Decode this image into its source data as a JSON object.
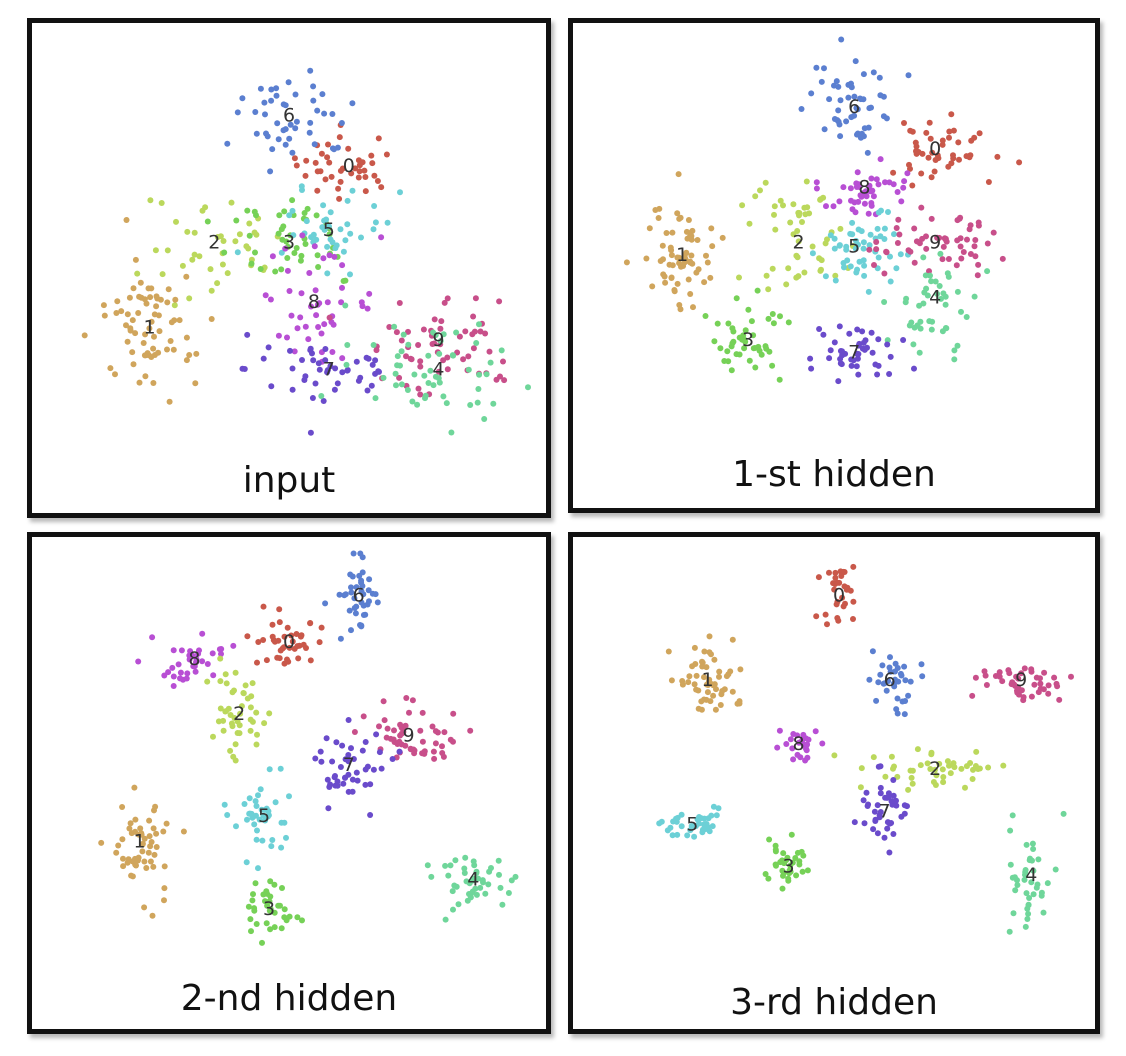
{
  "colors": {
    "0": "#c9584a",
    "1": "#d0a55c",
    "2": "#bbd85c",
    "3": "#76d157",
    "4": "#6fd69a",
    "5": "#6cd0d6",
    "6": "#5b7fd0",
    "7": "#6a4bcb",
    "8": "#b84fd4",
    "9": "#c84f8a"
  },
  "chart_data": [
    {
      "type": "scatter",
      "title": "input",
      "clusters": [
        {
          "label": "0",
          "center": [
            0.62,
            0.32
          ],
          "spread": [
            0.07,
            0.05
          ],
          "n": 40
        },
        {
          "label": "6",
          "center": [
            0.5,
            0.2
          ],
          "spread": [
            0.08,
            0.07
          ],
          "n": 45
        },
        {
          "label": "2",
          "center": [
            0.35,
            0.5
          ],
          "spread": [
            0.09,
            0.09
          ],
          "n": 40
        },
        {
          "label": "3",
          "center": [
            0.5,
            0.5
          ],
          "spread": [
            0.1,
            0.08
          ],
          "n": 45
        },
        {
          "label": "5",
          "center": [
            0.58,
            0.47
          ],
          "spread": [
            0.07,
            0.06
          ],
          "n": 40
        },
        {
          "label": "1",
          "center": [
            0.22,
            0.7
          ],
          "spread": [
            0.06,
            0.1
          ],
          "n": 70
        },
        {
          "label": "8",
          "center": [
            0.55,
            0.64
          ],
          "spread": [
            0.08,
            0.08
          ],
          "n": 45
        },
        {
          "label": "7",
          "center": [
            0.58,
            0.8
          ],
          "spread": [
            0.11,
            0.06
          ],
          "n": 45
        },
        {
          "label": "9",
          "center": [
            0.8,
            0.73
          ],
          "spread": [
            0.11,
            0.08
          ],
          "n": 60
        },
        {
          "label": "4",
          "center": [
            0.8,
            0.8
          ],
          "spread": [
            0.11,
            0.08
          ],
          "n": 55
        }
      ]
    },
    {
      "type": "scatter",
      "title": "1-st hidden",
      "clusters": [
        {
          "label": "6",
          "center": [
            0.54,
            0.18
          ],
          "spread": [
            0.06,
            0.06
          ],
          "n": 50
        },
        {
          "label": "0",
          "center": [
            0.7,
            0.28
          ],
          "spread": [
            0.07,
            0.05
          ],
          "n": 45
        },
        {
          "label": "8",
          "center": [
            0.56,
            0.37
          ],
          "spread": [
            0.06,
            0.05
          ],
          "n": 45
        },
        {
          "label": "1",
          "center": [
            0.2,
            0.53
          ],
          "spread": [
            0.05,
            0.09
          ],
          "n": 65
        },
        {
          "label": "2",
          "center": [
            0.43,
            0.5
          ],
          "spread": [
            0.06,
            0.1
          ],
          "n": 50
        },
        {
          "label": "5",
          "center": [
            0.54,
            0.51
          ],
          "spread": [
            0.06,
            0.06
          ],
          "n": 50
        },
        {
          "label": "9",
          "center": [
            0.7,
            0.5
          ],
          "spread": [
            0.08,
            0.05
          ],
          "n": 55
        },
        {
          "label": "4",
          "center": [
            0.7,
            0.63
          ],
          "spread": [
            0.06,
            0.09
          ],
          "n": 45
        },
        {
          "label": "3",
          "center": [
            0.33,
            0.73
          ],
          "spread": [
            0.05,
            0.06
          ],
          "n": 45
        },
        {
          "label": "7",
          "center": [
            0.54,
            0.76
          ],
          "spread": [
            0.06,
            0.04
          ],
          "n": 45
        }
      ]
    },
    {
      "type": "scatter",
      "title": "2-nd hidden",
      "clusters": [
        {
          "label": "6",
          "center": [
            0.64,
            0.12
          ],
          "spread": [
            0.03,
            0.06
          ],
          "n": 40
        },
        {
          "label": "0",
          "center": [
            0.5,
            0.23
          ],
          "spread": [
            0.05,
            0.04
          ],
          "n": 40
        },
        {
          "label": "8",
          "center": [
            0.31,
            0.27
          ],
          "spread": [
            0.04,
            0.04
          ],
          "n": 35
        },
        {
          "label": "2",
          "center": [
            0.4,
            0.4
          ],
          "spread": [
            0.04,
            0.06
          ],
          "n": 45
        },
        {
          "label": "9",
          "center": [
            0.74,
            0.45
          ],
          "spread": [
            0.06,
            0.05
          ],
          "n": 55
        },
        {
          "label": "7",
          "center": [
            0.62,
            0.52
          ],
          "spread": [
            0.05,
            0.06
          ],
          "n": 45
        },
        {
          "label": "5",
          "center": [
            0.45,
            0.64
          ],
          "spread": [
            0.04,
            0.06
          ],
          "n": 40
        },
        {
          "label": "1",
          "center": [
            0.2,
            0.7
          ],
          "spread": [
            0.04,
            0.08
          ],
          "n": 55
        },
        {
          "label": "4",
          "center": [
            0.87,
            0.79
          ],
          "spread": [
            0.05,
            0.05
          ],
          "n": 45
        },
        {
          "label": "3",
          "center": [
            0.46,
            0.86
          ],
          "spread": [
            0.04,
            0.04
          ],
          "n": 35
        }
      ]
    },
    {
      "type": "scatter",
      "title": "3-rd hidden",
      "clusters": [
        {
          "label": "0",
          "center": [
            0.51,
            0.12
          ],
          "spread": [
            0.02,
            0.05
          ],
          "n": 30
        },
        {
          "label": "1",
          "center": [
            0.25,
            0.32
          ],
          "spread": [
            0.04,
            0.06
          ],
          "n": 55
        },
        {
          "label": "6",
          "center": [
            0.61,
            0.32
          ],
          "spread": [
            0.03,
            0.05
          ],
          "n": 35
        },
        {
          "label": "9",
          "center": [
            0.87,
            0.32
          ],
          "spread": [
            0.05,
            0.03
          ],
          "n": 45
        },
        {
          "label": "8",
          "center": [
            0.43,
            0.47
          ],
          "spread": [
            0.03,
            0.03
          ],
          "n": 25
        },
        {
          "label": "2",
          "center": [
            0.7,
            0.53
          ],
          "spread": [
            0.08,
            0.03
          ],
          "n": 45
        },
        {
          "label": "7",
          "center": [
            0.6,
            0.63
          ],
          "spread": [
            0.03,
            0.06
          ],
          "n": 40
        },
        {
          "label": "5",
          "center": [
            0.22,
            0.66
          ],
          "spread": [
            0.05,
            0.03
          ],
          "n": 35
        },
        {
          "label": "3",
          "center": [
            0.41,
            0.76
          ],
          "spread": [
            0.03,
            0.04
          ],
          "n": 35
        },
        {
          "label": "4",
          "center": [
            0.89,
            0.78
          ],
          "spread": [
            0.03,
            0.09
          ],
          "n": 40
        }
      ]
    }
  ]
}
